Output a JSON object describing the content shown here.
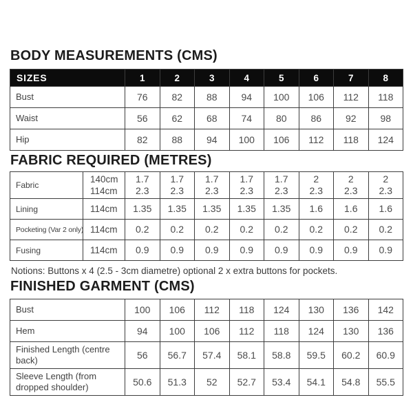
{
  "body_measurements": {
    "title": "BODY MEASUREMENTS (CMS)",
    "header_label": "SIZES",
    "sizes": [
      "1",
      "2",
      "3",
      "4",
      "5",
      "6",
      "7",
      "8"
    ],
    "rows": [
      {
        "label": "Bust",
        "values": [
          "76",
          "82",
          "88",
          "94",
          "100",
          "106",
          "112",
          "118"
        ]
      },
      {
        "label": "Waist",
        "values": [
          "56",
          "62",
          "68",
          "74",
          "80",
          "86",
          "92",
          "98"
        ]
      },
      {
        "label": "Hip",
        "values": [
          "82",
          "88",
          "94",
          "100",
          "106",
          "112",
          "118",
          "124"
        ]
      }
    ]
  },
  "fabric_required": {
    "title": "FABRIC REQUIRED (METRES)",
    "rows": [
      {
        "label": "Fabric",
        "widths": [
          "140cm",
          "114cm"
        ],
        "values": [
          [
            "1.7",
            "2.3"
          ],
          [
            "1.7",
            "2.3"
          ],
          [
            "1.7",
            "2.3"
          ],
          [
            "1.7",
            "2.3"
          ],
          [
            "1.7",
            "2.3"
          ],
          [
            "2",
            "2.3"
          ],
          [
            "2",
            "2.3"
          ],
          [
            "2",
            "2.3"
          ]
        ]
      },
      {
        "label": "Lining",
        "widths": [
          "114cm"
        ],
        "values": [
          [
            "1.35"
          ],
          [
            "1.35"
          ],
          [
            "1.35"
          ],
          [
            "1.35"
          ],
          [
            "1.35"
          ],
          [
            "1.6"
          ],
          [
            "1.6"
          ],
          [
            "1.6"
          ]
        ]
      },
      {
        "label": "Pocketing (Var 2 only)",
        "widths": [
          "114cm"
        ],
        "values": [
          [
            "0.2"
          ],
          [
            "0.2"
          ],
          [
            "0.2"
          ],
          [
            "0.2"
          ],
          [
            "0.2"
          ],
          [
            "0.2"
          ],
          [
            "0.2"
          ],
          [
            "0.2"
          ]
        ]
      },
      {
        "label": "Fusing",
        "widths": [
          "114cm"
        ],
        "values": [
          [
            "0.9"
          ],
          [
            "0.9"
          ],
          [
            "0.9"
          ],
          [
            "0.9"
          ],
          [
            "0.9"
          ],
          [
            "0.9"
          ],
          [
            "0.9"
          ],
          [
            "0.9"
          ]
        ]
      }
    ],
    "notions": "Notions: Buttons x 4  (2.5 - 3cm diametre) optional 2 x extra buttons for pockets."
  },
  "finished_garment": {
    "title": "FINISHED GARMENT (CMS)",
    "rows": [
      {
        "label": "Bust",
        "values": [
          "100",
          "106",
          "112",
          "118",
          "124",
          "130",
          "136",
          "142"
        ]
      },
      {
        "label": "Hem",
        "values": [
          "94",
          "100",
          "106",
          "112",
          "118",
          "124",
          "130",
          "136"
        ]
      },
      {
        "label": "Finished Length (centre back)",
        "values": [
          "56",
          "56.7",
          "57.4",
          "58.1",
          "58.8",
          "59.5",
          "60.2",
          "60.9"
        ]
      },
      {
        "label": "Sleeve Length (from dropped shoulder)",
        "values": [
          "50.6",
          "51.3",
          "52",
          "52.7",
          "53.4",
          "54.1",
          "54.8",
          "55.5"
        ]
      }
    ]
  },
  "colors": {
    "header_bar": "#0c0c0c",
    "header_text": "#ffffff",
    "border": "#3c3c3c",
    "text": "#3d3d3d",
    "background": "#ffffff"
  }
}
